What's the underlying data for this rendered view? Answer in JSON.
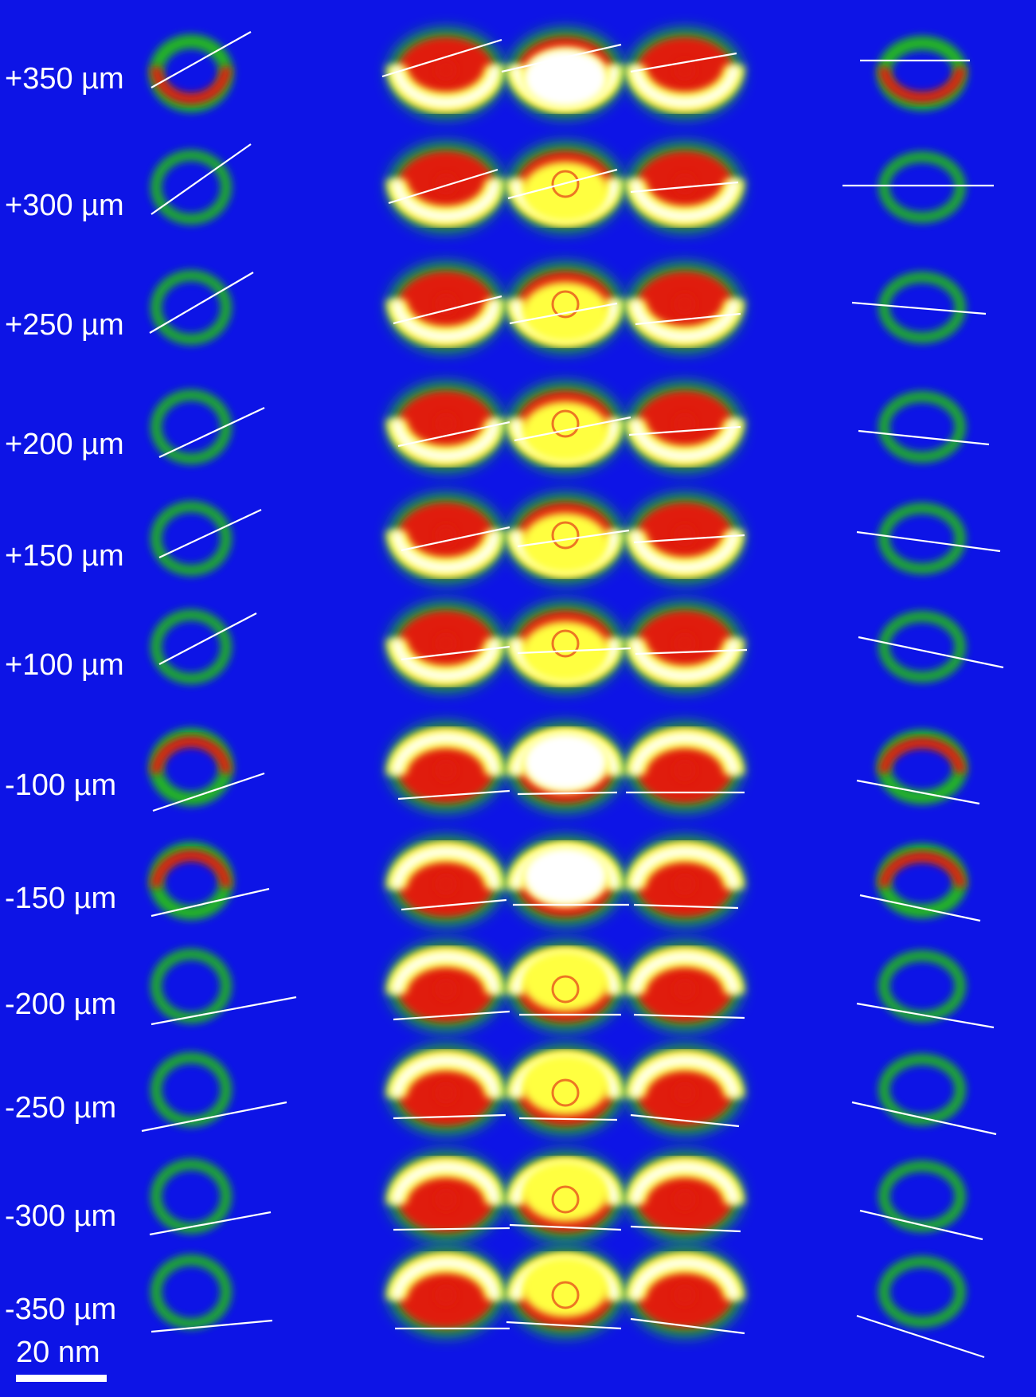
{
  "figure": {
    "row_labels": [
      "+350 µm",
      "+300 µm",
      "+250 µm",
      "+200 µm",
      "+150 µm",
      "+100 µm",
      "-100 µm",
      "-150 µm",
      "-200 µm",
      "-250 µm",
      "-300 µm",
      "-350 µm"
    ],
    "scale_bar": {
      "label": "20 nm"
    },
    "colors": {
      "background": "#0d14e6",
      "weak_signal": "#22b522",
      "medium_signal": "#e01a10",
      "strong_signal": "#ffff40",
      "saturated_signal": "#ffffff",
      "guide_line": "#ffffff"
    }
  }
}
